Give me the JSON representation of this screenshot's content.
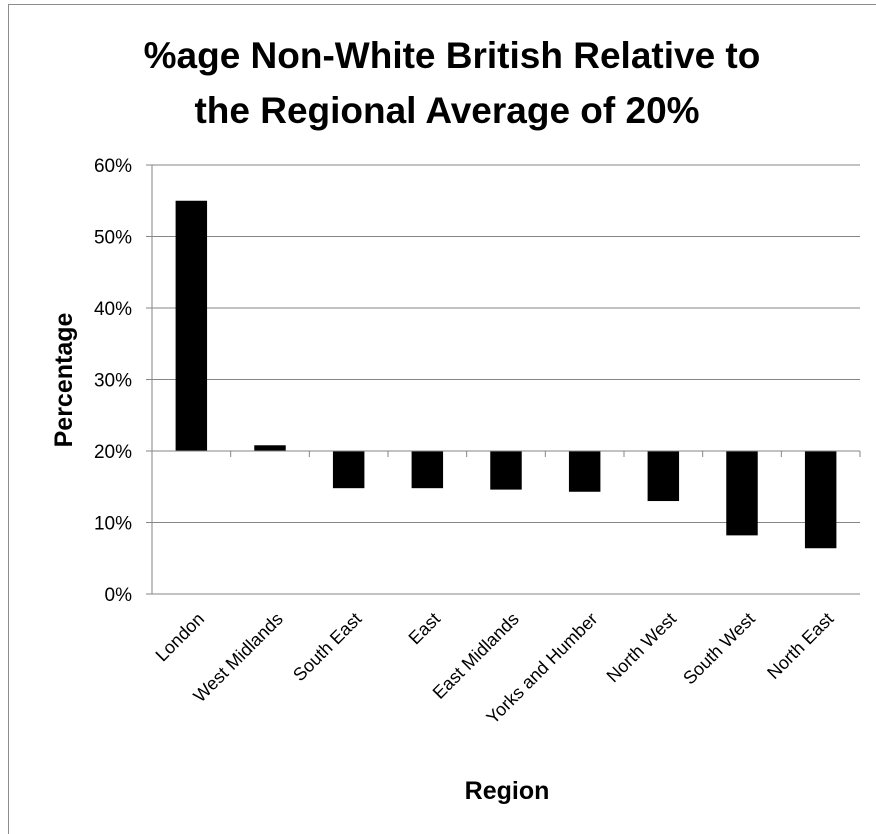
{
  "chart_data": {
    "type": "bar",
    "title_lines": [
      "%age Non-White British Relative to",
      "the Regional Average of 20%"
    ],
    "xlabel": "Region",
    "ylabel": "Percentage",
    "baseline": 0.2,
    "ylim": [
      0,
      0.6
    ],
    "yticks": [
      0,
      0.1,
      0.2,
      0.3,
      0.4,
      0.5,
      0.6
    ],
    "ytick_labels": [
      "0%",
      "10%",
      "20%",
      "30%",
      "40%",
      "50%",
      "60%"
    ],
    "categories": [
      "London",
      "West Midlands",
      "South East",
      "East",
      "East Midlands",
      "Yorks and Humber",
      "North West",
      "South West",
      "North East"
    ],
    "values": [
      0.55,
      0.208,
      0.148,
      0.148,
      0.146,
      0.143,
      0.13,
      0.082,
      0.064
    ],
    "grid": true,
    "legend": "none",
    "bar_color": "#000000"
  }
}
